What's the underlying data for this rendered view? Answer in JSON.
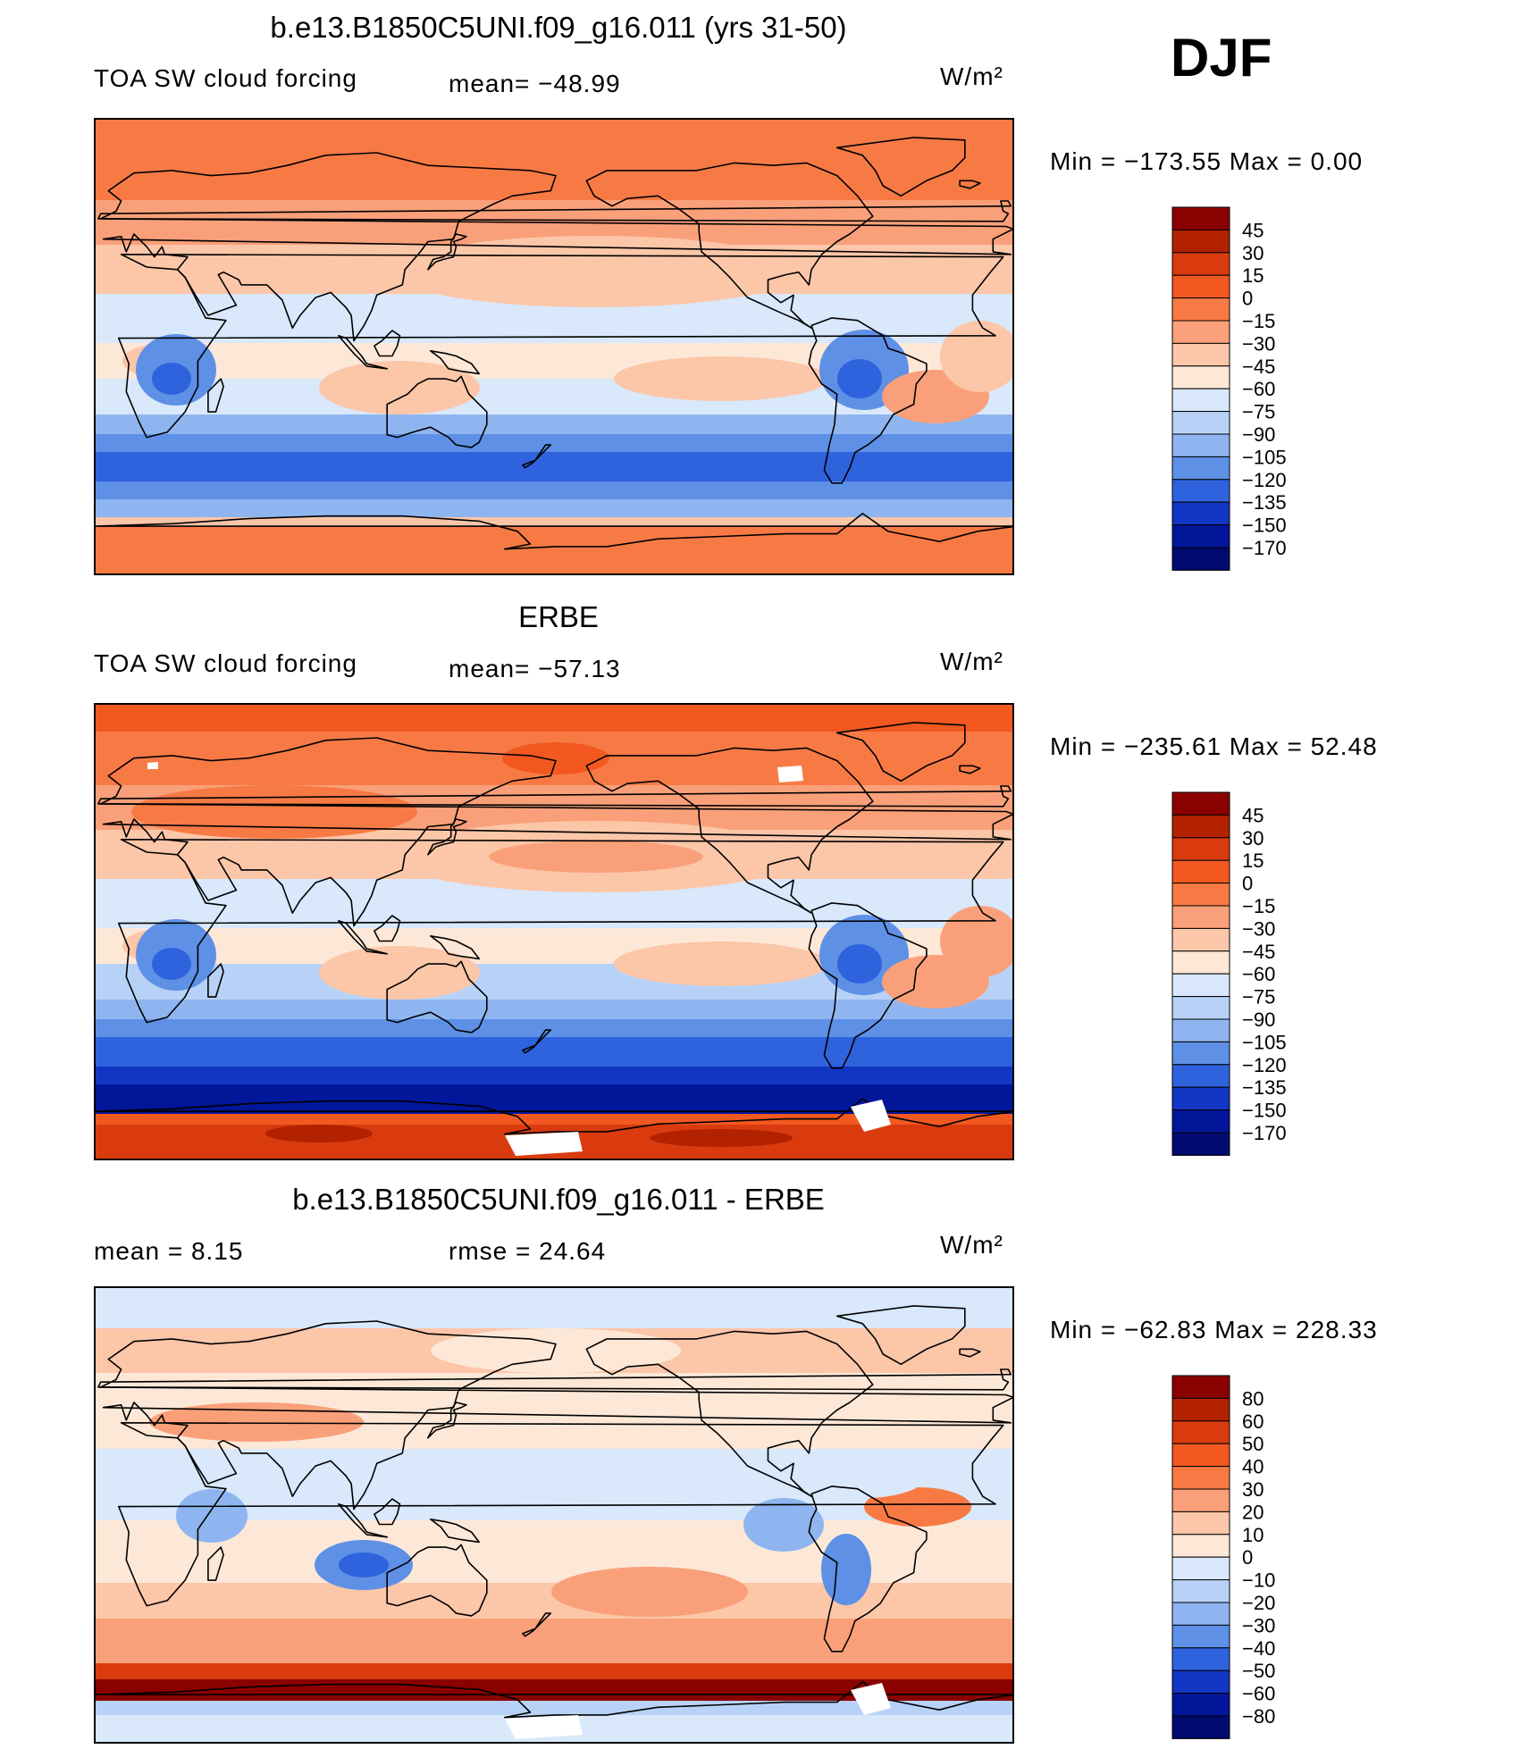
{
  "season": "DJF",
  "units": "W/m²",
  "panels": [
    {
      "title": "b.e13.B1850C5UNI.f09_g16.011 (yrs 31-50)",
      "left_label": "TOA SW cloud forcing",
      "mid_label": "mean= −48.99",
      "units": "W/m²",
      "minmax": "Min  =  −173.55  Max  =     0.00"
    },
    {
      "title": "ERBE",
      "left_label": "TOA SW cloud forcing",
      "mid_label": "mean= −57.13",
      "units": "W/m²",
      "minmax": "Min  =  −235.61  Max  =   52.48"
    },
    {
      "title": "b.e13.B1850C5UNI.f09_g16.011 - ERBE",
      "left_label": "mean  =     8.15",
      "mid_label": "rmse  =    24.64",
      "units": "W/m²",
      "minmax": "Min  =  −62.83  Max  =  228.33"
    }
  ],
  "chart_data": [
    {
      "type": "heatmap",
      "title": "b.e13.B1850C5UNI.f09_g16.011 (yrs 31-50)",
      "variable": "TOA SW cloud forcing",
      "mean": -48.99,
      "min": -173.55,
      "max": 0.0,
      "colorbar_levels": [
        "45",
        "30",
        "15",
        "0",
        "−15",
        "−30",
        "−45",
        "−60",
        "−75",
        "−90",
        "−105",
        "−120",
        "−135",
        "−150",
        "−170"
      ]
    },
    {
      "type": "heatmap",
      "title": "ERBE",
      "variable": "TOA SW cloud forcing",
      "mean": -57.13,
      "min": -235.61,
      "max": 52.48,
      "colorbar_levels": [
        "45",
        "30",
        "15",
        "0",
        "−15",
        "−30",
        "−45",
        "−60",
        "−75",
        "−90",
        "−105",
        "−120",
        "−135",
        "−150",
        "−170"
      ]
    },
    {
      "type": "heatmap",
      "title": "b.e13.B1850C5UNI.f09_g16.011 - ERBE",
      "mean": 8.15,
      "rmse": 24.64,
      "min": -62.83,
      "max": 228.33,
      "colorbar_levels": [
        "80",
        "60",
        "50",
        "40",
        "30",
        "20",
        "10",
        "0",
        "−10",
        "−20",
        "−30",
        "−40",
        "−50",
        "−60",
        "−80"
      ]
    }
  ],
  "colors": {
    "scale": [
      "#8b0000",
      "#b22200",
      "#d93b0f",
      "#f2581f",
      "#f77a45",
      "#f9a07a",
      "#fcc6a8",
      "#fde8d8",
      "#d9e8fb",
      "#b8d2f7",
      "#8eb5f0",
      "#5e90e6",
      "#2f62dd",
      "#1236c4",
      "#02169a",
      "#000a6e"
    ]
  }
}
